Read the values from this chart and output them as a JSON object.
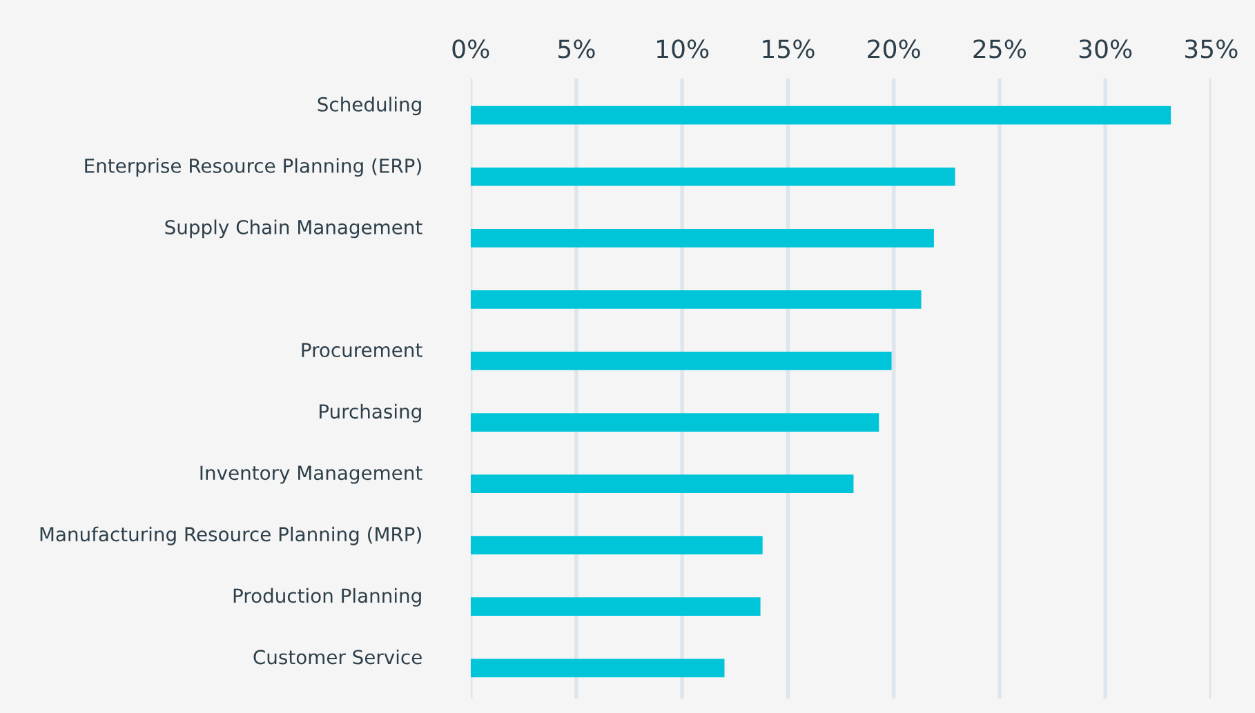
{
  "chart_data": {
    "type": "bar",
    "orientation": "horizontal",
    "categories": [
      "Scheduling",
      "Enterprise Resource Planning (ERP)",
      "Supply Chain Management",
      null,
      "Procurement",
      "Purchasing",
      "Inventory Management",
      "Manufacturing Resource Planning (MRP)",
      "Production Planning",
      "Customer Service"
    ],
    "values": [
      33.1,
      22.9,
      21.9,
      21.3,
      19.9,
      19.3,
      18.1,
      13.8,
      13.7,
      12.0
    ],
    "color": "#00c5d9",
    "xlim": [
      0,
      35
    ],
    "xticks": [
      {
        "value": 0,
        "label": "0%"
      },
      {
        "value": 5,
        "label": "5%"
      },
      {
        "value": 10,
        "label": "10%"
      },
      {
        "value": 15,
        "label": "15%"
      },
      {
        "value": 20,
        "label": "20%"
      },
      {
        "value": 25,
        "label": "25%"
      },
      {
        "value": 30,
        "label": "30%"
      },
      {
        "value": 35,
        "label": "35%"
      }
    ],
    "grid": "x"
  }
}
